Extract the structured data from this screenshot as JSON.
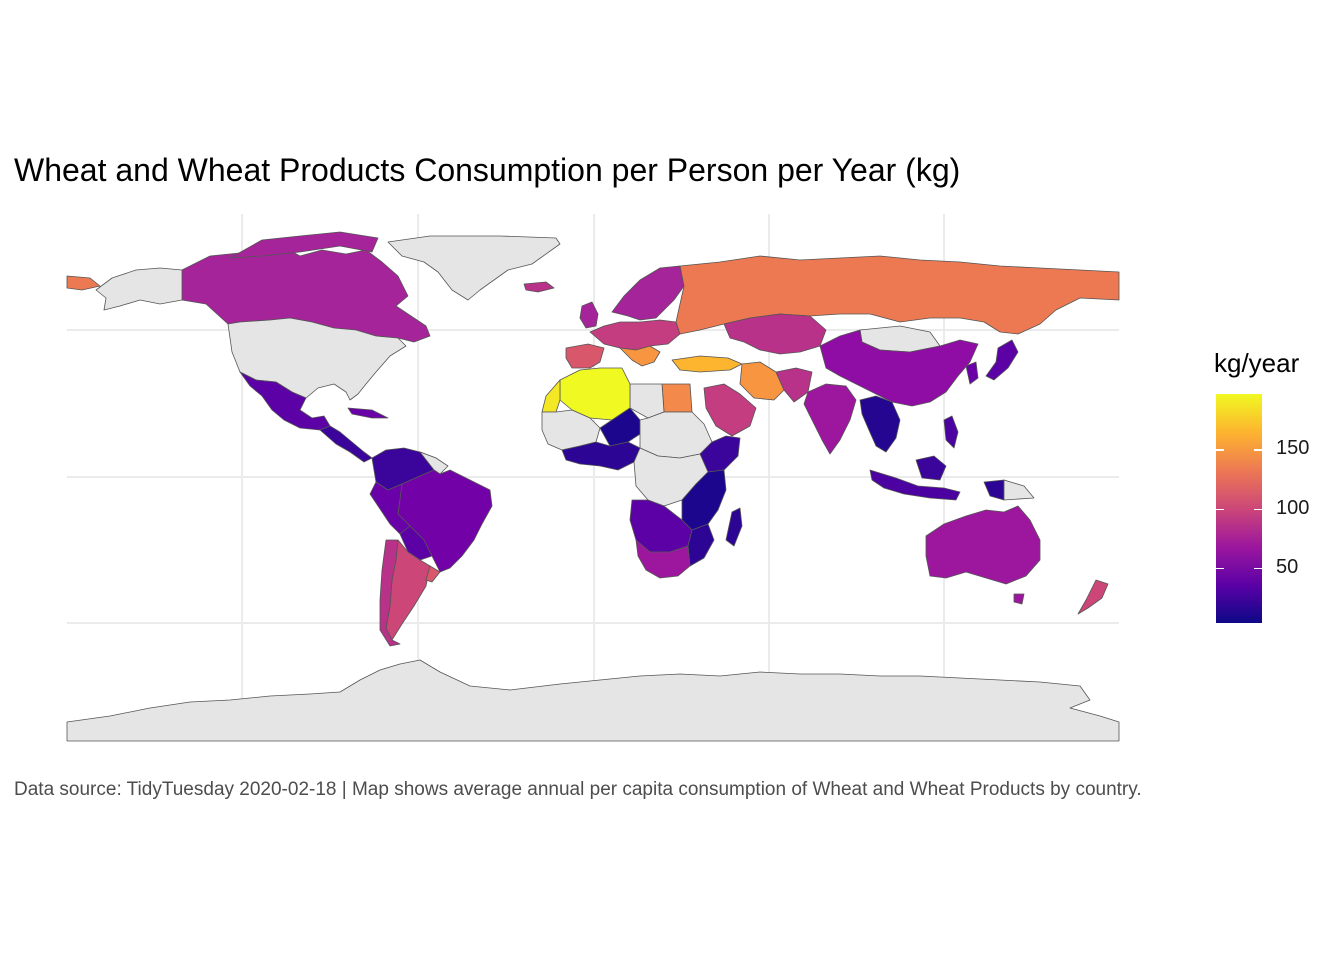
{
  "title": "Wheat and Wheat Products Consumption per Person per Year (kg)",
  "caption": "Data source: TidyTuesday 2020-02-18 | Map shows average annual per capita consumption of Wheat and Wheat Products by country.",
  "legend": {
    "title": "kg/year",
    "breaks": [
      "150",
      "100",
      "50"
    ],
    "break_values": [
      150,
      100,
      50
    ],
    "range": [
      3,
      197
    ],
    "palette": "plasma",
    "colors": [
      "#0d0887",
      "#5c01a6",
      "#9c179e",
      "#cc4778",
      "#ed7953",
      "#fdb42f",
      "#f0f921"
    ],
    "na_color": "#e5e5e5"
  },
  "chart_data": {
    "type": "choropleth",
    "variable": "kg/year",
    "countries": [
      {
        "name": "Canada",
        "value": 80
      },
      {
        "name": "United States",
        "value": null
      },
      {
        "name": "Greenland",
        "value": null
      },
      {
        "name": "Mexico",
        "value": 40
      },
      {
        "name": "Central America",
        "value": 30
      },
      {
        "name": "Colombia",
        "value": 30
      },
      {
        "name": "Venezuela",
        "value": 25
      },
      {
        "name": "Brazil",
        "value": 55
      },
      {
        "name": "Peru",
        "value": 45
      },
      {
        "name": "Bolivia",
        "value": 35
      },
      {
        "name": "Paraguay",
        "value": 30
      },
      {
        "name": "Chile",
        "value": 100
      },
      {
        "name": "Argentina",
        "value": 100
      },
      {
        "name": "Uruguay",
        "value": 100
      },
      {
        "name": "Iceland",
        "value": 115
      },
      {
        "name": "Norway",
        "value": 85
      },
      {
        "name": "Sweden",
        "value": 80
      },
      {
        "name": "Finland",
        "value": 80
      },
      {
        "name": "United Kingdom",
        "value": 85
      },
      {
        "name": "France",
        "value": 105
      },
      {
        "name": "Spain",
        "value": 95
      },
      {
        "name": "Germany",
        "value": 80
      },
      {
        "name": "Poland",
        "value": 95
      },
      {
        "name": "Italy",
        "value": 150
      },
      {
        "name": "Greece",
        "value": 120
      },
      {
        "name": "Turkey",
        "value": 170
      },
      {
        "name": "Russia",
        "value": 120
      },
      {
        "name": "Kazakhstan",
        "value": 100
      },
      {
        "name": "Mongolia",
        "value": null
      },
      {
        "name": "China",
        "value": 65
      },
      {
        "name": "Japan",
        "value": 40
      },
      {
        "name": "India",
        "value": 60
      },
      {
        "name": "Iran",
        "value": 150
      },
      {
        "name": "Saudi Arabia",
        "value": 95
      },
      {
        "name": "Egypt",
        "value": 140
      },
      {
        "name": "Libya",
        "value": null
      },
      {
        "name": "Algeria",
        "value": 195
      },
      {
        "name": "Morocco",
        "value": 190
      },
      {
        "name": "Mali",
        "value": null
      },
      {
        "name": "Niger",
        "value": 8
      },
      {
        "name": "Chad",
        "value": null
      },
      {
        "name": "Sudan",
        "value": null
      },
      {
        "name": "Ethiopia",
        "value": 35
      },
      {
        "name": "Nigeria",
        "value": 20
      },
      {
        "name": "DR Congo",
        "value": null
      },
      {
        "name": "Angola",
        "value": 35
      },
      {
        "name": "Tanzania",
        "value": 15
      },
      {
        "name": "Mozambique",
        "value": 20
      },
      {
        "name": "Madagascar",
        "value": 12
      },
      {
        "name": "South Africa",
        "value": 60
      },
      {
        "name": "Thailand",
        "value": 10
      },
      {
        "name": "Indonesia",
        "value": 25
      },
      {
        "name": "Philippines",
        "value": 25
      },
      {
        "name": "Papua New Guinea",
        "value": 15
      },
      {
        "name": "Australia",
        "value": 75
      },
      {
        "name": "New Zealand",
        "value": 100
      },
      {
        "name": "Antarctica",
        "value": null
      }
    ]
  }
}
